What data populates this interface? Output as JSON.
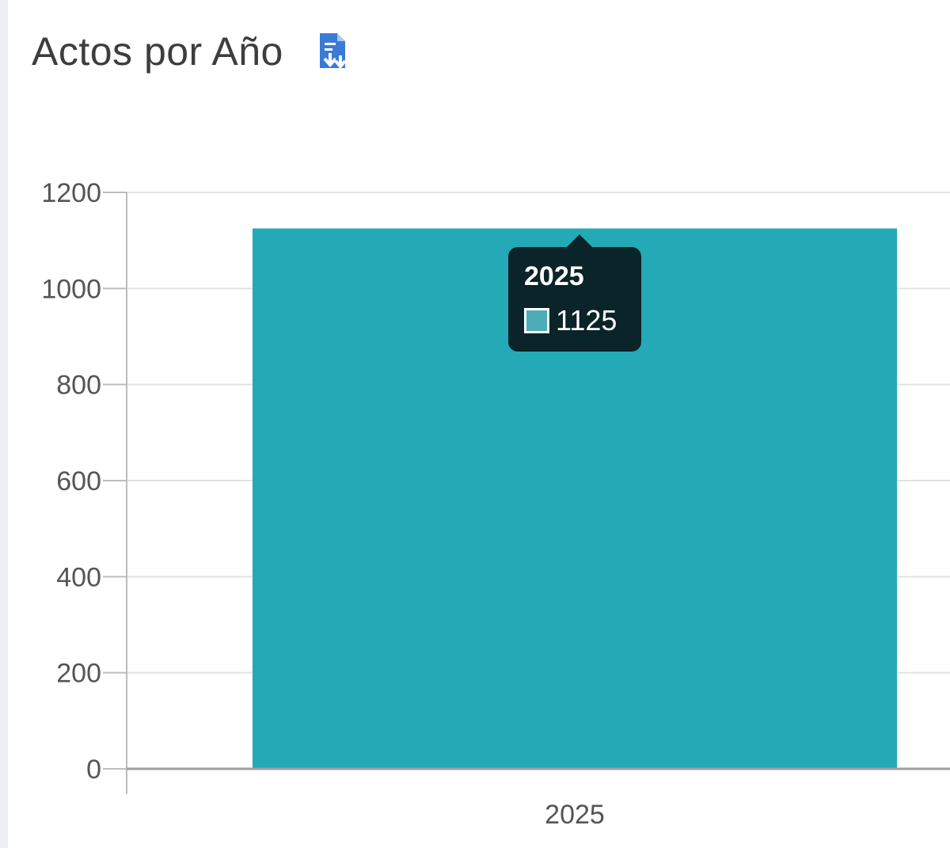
{
  "header": {
    "title": "Actos por Año",
    "export_icon": "file-download-icon",
    "export_icon_color": "#3a7bd5"
  },
  "chart_data": {
    "type": "bar",
    "title": "Actos por Año",
    "xlabel": "",
    "ylabel": "",
    "categories": [
      "2025"
    ],
    "values": [
      1125
    ],
    "ylim": [
      0,
      1200
    ],
    "yticks": [
      0,
      200,
      400,
      600,
      800,
      1000,
      1200
    ],
    "grid": true,
    "bar_color": "#23aab6",
    "legend": "none"
  },
  "tooltip": {
    "title": "2025",
    "value": "1125",
    "swatch_color": "#4cadb6"
  }
}
